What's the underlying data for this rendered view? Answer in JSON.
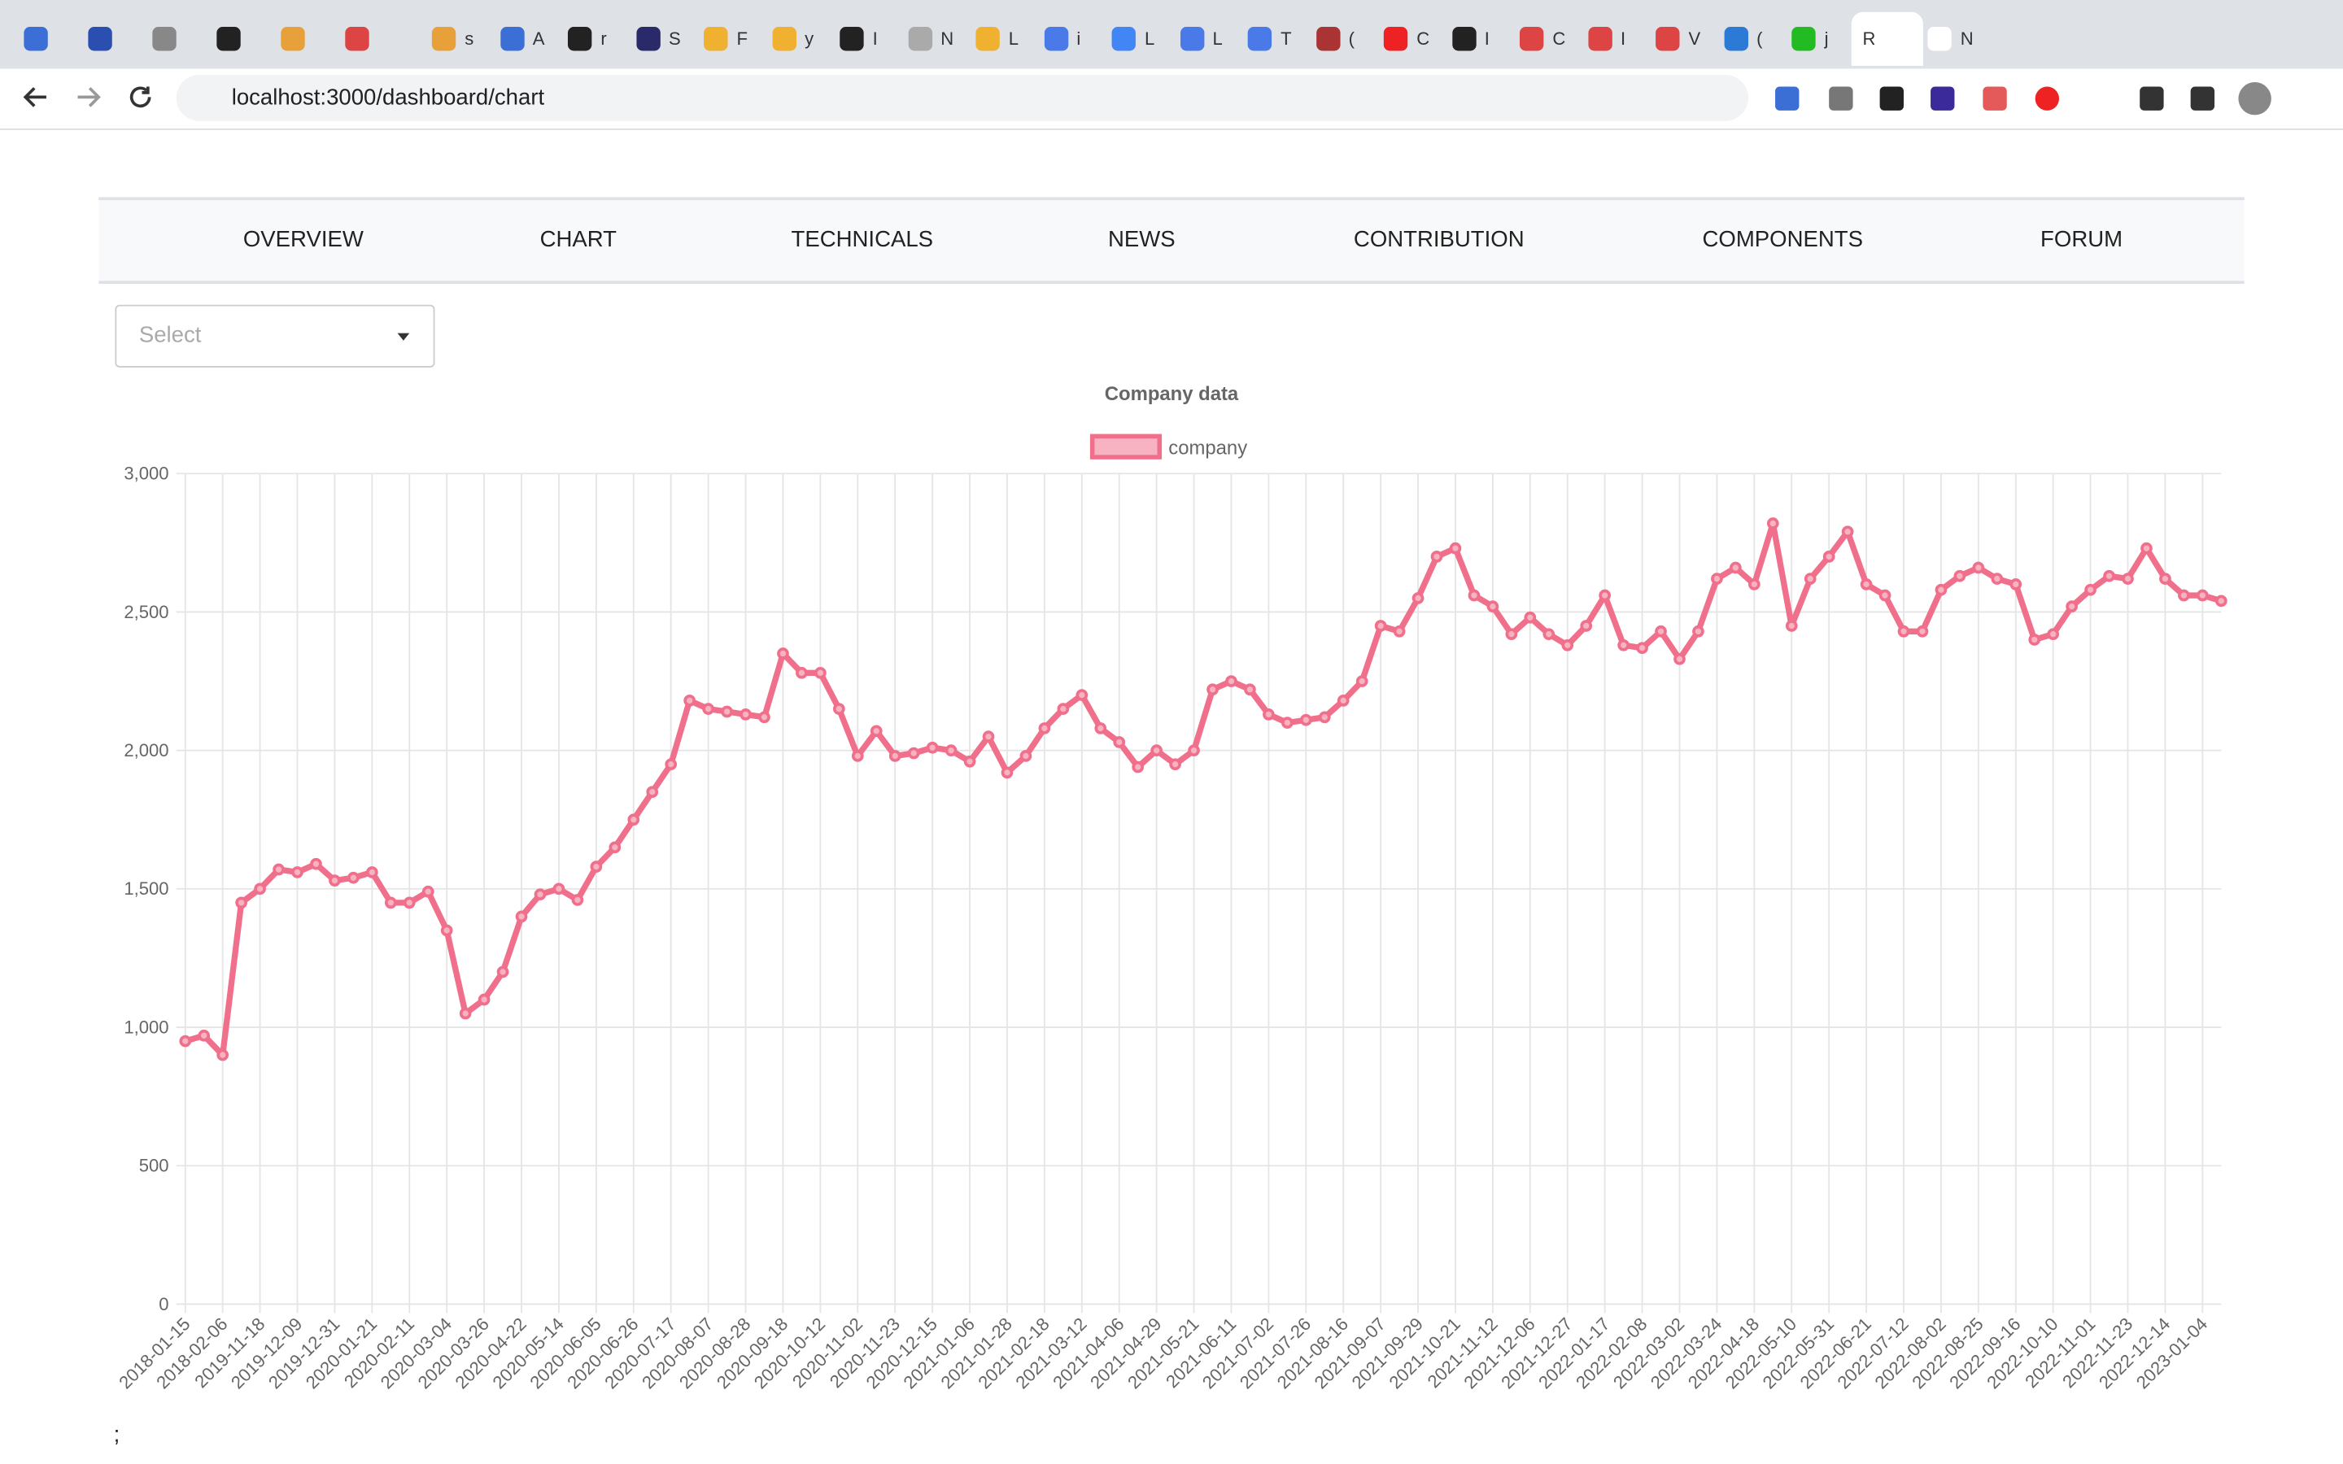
{
  "browser": {
    "tabs": [
      "s",
      "A",
      "r",
      "S",
      "F",
      "y",
      "I",
      "N",
      "L",
      "i",
      "L",
      "L",
      "T",
      "(",
      "C",
      "I",
      "C",
      "I",
      "V",
      "(",
      "j",
      "R",
      "N"
    ],
    "url": "localhost:3000/dashboard/chart"
  },
  "nav": {
    "items": [
      "OVERVIEW",
      "CHART",
      "TECHNICALS",
      "NEWS",
      "CONTRIBUTION",
      "COMPONENTS",
      "FORUM"
    ]
  },
  "select": {
    "placeholder": "Select"
  },
  "footer": ";",
  "chart_data": {
    "type": "line",
    "title": "Company data",
    "categories": [
      "2018-01-15",
      null,
      "2018-02-06",
      null,
      "2019-11-18",
      null,
      "2019-12-09",
      null,
      "2019-12-31",
      null,
      "2020-01-21",
      null,
      "2020-02-11",
      null,
      "2020-03-04",
      null,
      "2020-03-26",
      null,
      "2020-04-22",
      null,
      "2020-05-14",
      null,
      "2020-06-05",
      null,
      "2020-06-26",
      null,
      "2020-07-17",
      null,
      "2020-08-07",
      null,
      "2020-08-28",
      null,
      "2020-09-18",
      null,
      "2020-10-12",
      null,
      "2020-11-02",
      null,
      "2020-11-23",
      null,
      "2020-12-15",
      null,
      "2021-01-06",
      null,
      "2021-01-28",
      null,
      "2021-02-18",
      null,
      "2021-03-12",
      null,
      "2021-04-06",
      null,
      "2021-04-29",
      null,
      "2021-05-21",
      null,
      "2021-06-11",
      null,
      "2021-07-02",
      null,
      "2021-07-26",
      null,
      "2021-08-16",
      null,
      "2021-09-07",
      null,
      "2021-09-29",
      null,
      "2021-10-21",
      null,
      "2021-11-12",
      null,
      "2021-12-06",
      null,
      "2021-12-27",
      null,
      "2022-01-17",
      null,
      "2022-02-08",
      null,
      "2022-03-02",
      null,
      "2022-03-24",
      null,
      "2022-04-18",
      null,
      "2022-05-10",
      null,
      "2022-05-31",
      null,
      "2022-06-21",
      null,
      "2022-07-12",
      null,
      "2022-08-02",
      null,
      "2022-08-25",
      null,
      "2022-09-16",
      null,
      "2022-10-10",
      null,
      "2022-11-01",
      null,
      "2022-11-23",
      null,
      "2022-12-14",
      null,
      "2023-01-04",
      null
    ],
    "series": [
      {
        "name": "company",
        "color": "#f0708c",
        "fill": "#f8b3c2",
        "values": [
          950,
          970,
          900,
          1450,
          1500,
          1570,
          1560,
          1590,
          1530,
          1540,
          1560,
          1450,
          1450,
          1490,
          1350,
          1050,
          1100,
          1200,
          1400,
          1480,
          1500,
          1460,
          1580,
          1650,
          1750,
          1850,
          1950,
          2180,
          2150,
          2140,
          2130,
          2120,
          2350,
          2280,
          2280,
          2150,
          1980,
          2070,
          1980,
          1990,
          2010,
          2000,
          1960,
          2050,
          1920,
          1980,
          2080,
          2150,
          2200,
          2080,
          2030,
          1940,
          2000,
          1950,
          2000,
          2220,
          2250,
          2220,
          2130,
          2100,
          2110,
          2120,
          2180,
          2250,
          2450,
          2430,
          2550,
          2700,
          2730,
          2560,
          2520,
          2420,
          2480,
          2420,
          2380,
          2450,
          2560,
          2380,
          2370,
          2430,
          2330,
          2430,
          2620,
          2660,
          2600,
          2820,
          2450,
          2620,
          2700,
          2790,
          2600,
          2560,
          2430,
          2430,
          2580,
          2630,
          2660,
          2620,
          2600,
          2400,
          2420,
          2520,
          2580,
          2630,
          2620,
          2730,
          2620,
          2560,
          2560,
          2540
        ]
      }
    ],
    "ylim": [
      0,
      3000
    ],
    "yticks": [
      0,
      500,
      {
        "value": 1000,
        "label": "1,000"
      },
      {
        "value": 1500,
        "label": "1,500"
      },
      {
        "value": 2000,
        "label": "2,000"
      },
      {
        "value": 2500,
        "label": "2,500"
      },
      {
        "value": 3000,
        "label": "3,000"
      }
    ],
    "grid": true,
    "legend": "top"
  }
}
